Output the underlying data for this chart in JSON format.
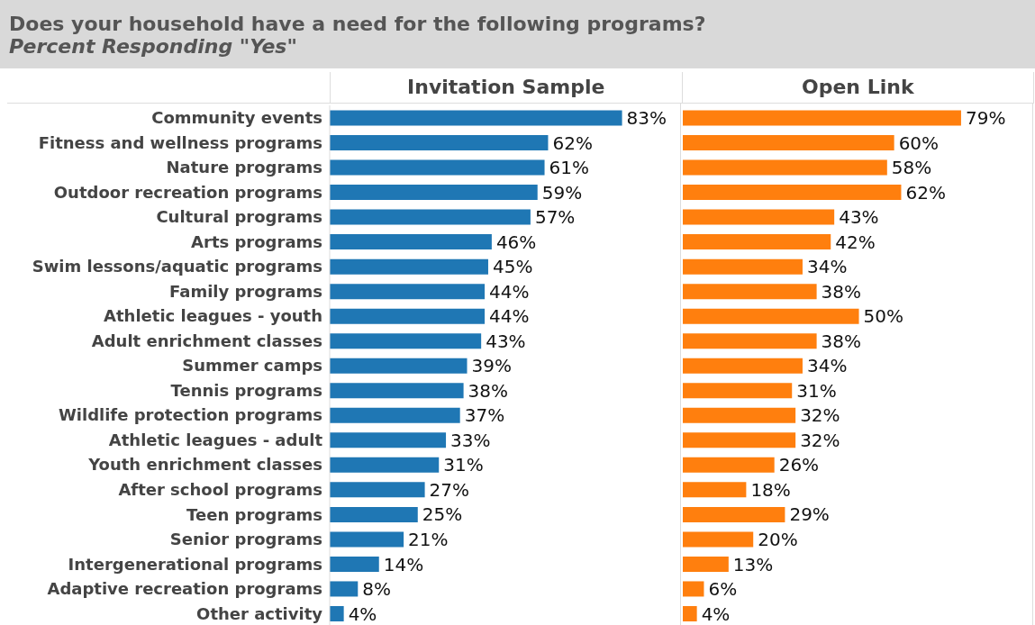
{
  "chart_data": [
    {
      "type": "bar",
      "orientation": "horizontal",
      "title": "Does your household have a need for the following programs?",
      "subtitle": "Percent Responding \"Yes\"",
      "categories": [
        "Community events",
        "Fitness and wellness programs",
        "Nature programs",
        "Outdoor recreation programs",
        "Cultural programs",
        "Arts programs",
        "Swim lessons/aquatic programs",
        "Family programs",
        "Athletic leagues - youth",
        "Adult enrichment classes",
        "Summer camps",
        "Tennis programs",
        "Wildlife protection programs",
        "Athletic leagues - adult",
        "Youth enrichment classes",
        "After school programs",
        "Teen programs",
        "Senior programs",
        "Intergenerational programs",
        "Adaptive recreation programs",
        "Other activity"
      ],
      "series": [
        {
          "name": "Invitation Sample",
          "color": "#1f77b4",
          "values": [
            83,
            62,
            61,
            59,
            57,
            46,
            45,
            44,
            44,
            43,
            39,
            38,
            37,
            33,
            31,
            27,
            25,
            21,
            14,
            8,
            4
          ],
          "value_labels": [
            "83%",
            "62%",
            "61%",
            "59%",
            "57%",
            "46%",
            "45%",
            "44%",
            "44%",
            "43%",
            "39%",
            "38%",
            "37%",
            "33%",
            "31%",
            "27%",
            "25%",
            "21%",
            "14%",
            "8%",
            "4%"
          ]
        }
      ],
      "grid": false
    },
    {
      "type": "bar",
      "orientation": "horizontal",
      "categories": [
        null,
        null,
        null,
        null,
        null,
        null,
        null,
        null,
        null,
        null,
        null,
        null,
        null,
        null,
        null,
        null,
        null,
        null,
        null,
        null,
        null
      ],
      "series": [
        {
          "name": "Open Link",
          "color": "#ff7f0e",
          "values": [
            79,
            60,
            58,
            62,
            43,
            42,
            34,
            38,
            50,
            38,
            34,
            31,
            32,
            32,
            26,
            18,
            29,
            20,
            13,
            6,
            4
          ],
          "value_labels": [
            "79%",
            "60%",
            "58%",
            "62%",
            "43%",
            "42%",
            "34%",
            "38%",
            "50%",
            "38%",
            "34%",
            "31%",
            "32%",
            "32%",
            "26%",
            "18%",
            "29%",
            "20%",
            "13%",
            "6%",
            "4%"
          ]
        }
      ],
      "grid": false
    }
  ]
}
